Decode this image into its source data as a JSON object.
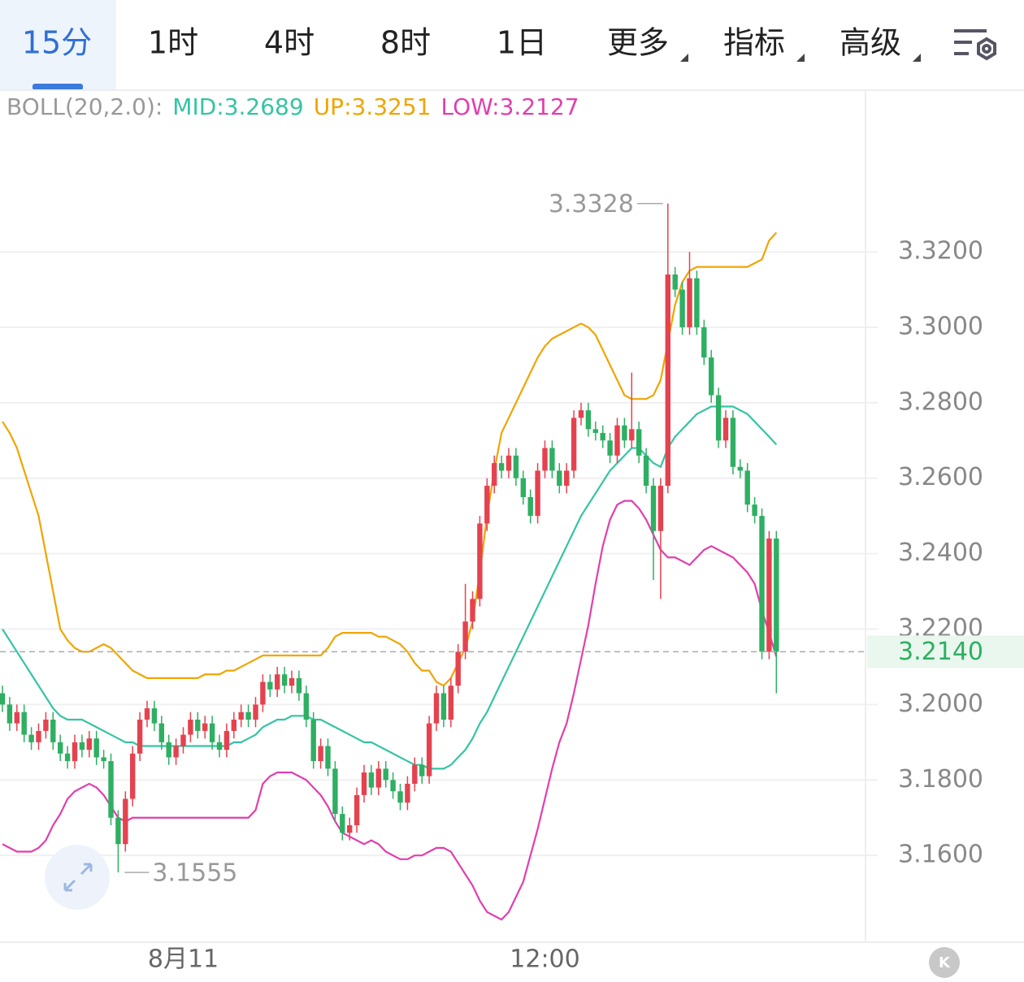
{
  "tabs": {
    "items": [
      "15分",
      "1时",
      "4时",
      "8时",
      "1日",
      "更多",
      "指标",
      "高级"
    ],
    "selected": 0
  },
  "controls": {
    "kline_button": "K"
  },
  "chart_data": {
    "type": "candlestick",
    "indicator_label": "BOLL(20,2.0):",
    "up_color": "#e5424f",
    "down_color": "#2eaf62",
    "categories": [
      null,
      null,
      null,
      null,
      null,
      null,
      null,
      null,
      null,
      null,
      null,
      null,
      null,
      null,
      null,
      null,
      null,
      null,
      null,
      null,
      null,
      null,
      null,
      null,
      null,
      "8月11",
      null,
      null,
      null,
      null,
      null,
      null,
      null,
      null,
      null,
      null,
      null,
      null,
      null,
      null,
      null,
      null,
      null,
      null,
      null,
      null,
      null,
      null,
      null,
      null,
      null,
      null,
      null,
      null,
      null,
      null,
      null,
      null,
      null,
      null,
      null,
      null,
      null,
      null,
      null,
      null,
      null,
      null,
      null,
      null,
      null,
      null,
      null,
      null,
      null,
      "12:00",
      null,
      null,
      null,
      null,
      null,
      null,
      null,
      null,
      null,
      null,
      null,
      null,
      null,
      null,
      null,
      null,
      null,
      null,
      null,
      null,
      null,
      null,
      null,
      null,
      null,
      null,
      null,
      null,
      null,
      null,
      null,
      null
    ],
    "open": [
      3.203,
      3.2,
      3.195,
      3.198,
      3.192,
      3.19,
      3.193,
      3.196,
      3.19,
      3.187,
      3.185,
      3.19,
      3.188,
      3.191,
      3.186,
      3.185,
      3.17,
      3.163,
      3.175,
      3.187,
      3.196,
      3.199,
      3.195,
      3.19,
      3.186,
      3.189,
      3.192,
      3.196,
      3.193,
      3.195,
      3.19,
      3.188,
      3.193,
      3.196,
      3.198,
      3.196,
      3.2,
      3.206,
      3.204,
      3.208,
      3.205,
      3.207,
      3.203,
      3.196,
      3.185,
      3.189,
      3.183,
      3.171,
      3.166,
      3.168,
      3.176,
      3.182,
      3.178,
      3.183,
      3.18,
      3.177,
      3.174,
      3.179,
      3.184,
      3.181,
      3.195,
      3.203,
      3.196,
      3.205,
      3.214,
      3.222,
      3.228,
      3.248,
      3.258,
      3.264,
      3.262,
      3.266,
      3.26,
      3.255,
      3.25,
      3.262,
      3.268,
      3.262,
      3.258,
      3.262,
      3.276,
      3.278,
      3.273,
      3.272,
      3.27,
      3.266,
      3.274,
      3.27,
      3.273,
      3.266,
      3.258,
      3.246,
      3.258,
      3.314,
      3.31,
      3.3,
      3.313,
      3.3,
      3.292,
      3.282,
      3.27,
      3.276,
      3.263,
      3.262,
      3.253,
      3.25,
      3.214,
      3.244
    ],
    "high": [
      3.205,
      3.202,
      3.2,
      3.2,
      3.194,
      3.195,
      3.198,
      3.198,
      3.192,
      3.189,
      3.192,
      3.192,
      3.193,
      3.193,
      3.188,
      3.187,
      3.172,
      3.177,
      3.189,
      3.198,
      3.201,
      3.201,
      3.197,
      3.192,
      3.191,
      3.194,
      3.198,
      3.198,
      3.197,
      3.197,
      3.192,
      3.195,
      3.198,
      3.2,
      3.2,
      3.202,
      3.208,
      3.208,
      3.21,
      3.21,
      3.209,
      3.209,
      3.205,
      3.198,
      3.191,
      3.191,
      3.185,
      3.173,
      3.17,
      3.178,
      3.184,
      3.184,
      3.185,
      3.185,
      3.182,
      3.179,
      3.181,
      3.186,
      3.186,
      3.197,
      3.205,
      3.205,
      3.207,
      3.216,
      3.232,
      3.23,
      3.25,
      3.26,
      3.266,
      3.266,
      3.268,
      3.268,
      3.262,
      3.257,
      3.264,
      3.27,
      3.27,
      3.264,
      3.264,
      3.278,
      3.28,
      3.28,
      3.275,
      3.274,
      3.272,
      3.276,
      3.276,
      3.288,
      3.275,
      3.268,
      3.26,
      3.26,
      3.3328,
      3.316,
      3.312,
      3.32,
      3.315,
      3.302,
      3.294,
      3.284,
      3.278,
      3.278,
      3.265,
      3.264,
      3.255,
      3.252,
      3.246,
      3.246
    ],
    "low": [
      3.198,
      3.193,
      3.193,
      3.19,
      3.188,
      3.188,
      3.191,
      3.188,
      3.185,
      3.183,
      3.183,
      3.186,
      3.186,
      3.184,
      3.183,
      3.168,
      3.1555,
      3.161,
      3.173,
      3.185,
      3.194,
      3.193,
      3.188,
      3.184,
      3.184,
      3.187,
      3.19,
      3.191,
      3.191,
      3.188,
      3.186,
      3.186,
      3.191,
      3.194,
      3.194,
      3.194,
      3.198,
      3.202,
      3.202,
      3.203,
      3.203,
      3.201,
      3.194,
      3.183,
      3.183,
      3.181,
      3.169,
      3.164,
      3.164,
      3.166,
      3.174,
      3.176,
      3.176,
      3.178,
      3.175,
      3.172,
      3.172,
      3.177,
      3.179,
      3.179,
      3.193,
      3.194,
      3.194,
      3.203,
      3.212,
      3.22,
      3.226,
      3.246,
      3.256,
      3.26,
      3.26,
      3.258,
      3.253,
      3.248,
      3.248,
      3.26,
      3.26,
      3.256,
      3.256,
      3.26,
      3.274,
      3.271,
      3.27,
      3.268,
      3.264,
      3.264,
      3.268,
      3.268,
      3.264,
      3.256,
      3.233,
      3.228,
      3.256,
      3.308,
      3.298,
      3.298,
      3.298,
      3.29,
      3.28,
      3.268,
      3.268,
      3.261,
      3.26,
      3.251,
      3.248,
      3.212,
      3.212,
      3.203
    ],
    "close": [
      3.2,
      3.195,
      3.198,
      3.192,
      3.19,
      3.193,
      3.196,
      3.19,
      3.187,
      3.185,
      3.19,
      3.188,
      3.191,
      3.186,
      3.185,
      3.17,
      3.163,
      3.175,
      3.187,
      3.196,
      3.199,
      3.195,
      3.19,
      3.186,
      3.189,
      3.192,
      3.196,
      3.193,
      3.195,
      3.19,
      3.188,
      3.193,
      3.196,
      3.198,
      3.196,
      3.2,
      3.206,
      3.204,
      3.208,
      3.205,
      3.207,
      3.203,
      3.196,
      3.185,
      3.189,
      3.183,
      3.171,
      3.166,
      3.168,
      3.176,
      3.182,
      3.178,
      3.183,
      3.18,
      3.177,
      3.174,
      3.179,
      3.184,
      3.181,
      3.195,
      3.203,
      3.196,
      3.205,
      3.214,
      3.222,
      3.228,
      3.248,
      3.258,
      3.264,
      3.262,
      3.266,
      3.26,
      3.255,
      3.25,
      3.262,
      3.268,
      3.262,
      3.258,
      3.262,
      3.276,
      3.278,
      3.273,
      3.272,
      3.27,
      3.266,
      3.274,
      3.27,
      3.273,
      3.266,
      3.258,
      3.246,
      3.258,
      3.314,
      3.31,
      3.3,
      3.313,
      3.3,
      3.292,
      3.282,
      3.27,
      3.276,
      3.263,
      3.262,
      3.253,
      3.25,
      3.214,
      3.244,
      3.214
    ],
    "overlays": [
      {
        "name": "MID",
        "legend_label": "MID:3.2689",
        "color": "#35c4a4",
        "values": [
          3.22,
          3.217,
          3.214,
          3.211,
          3.208,
          3.205,
          3.202,
          3.199,
          3.197,
          3.196,
          3.196,
          3.196,
          3.195,
          3.194,
          3.193,
          3.192,
          3.191,
          3.19,
          3.19,
          3.189,
          3.189,
          3.189,
          3.189,
          3.189,
          3.189,
          3.189,
          3.189,
          3.189,
          3.189,
          3.189,
          3.189,
          3.189,
          3.19,
          3.19,
          3.191,
          3.192,
          3.194,
          3.195,
          3.196,
          3.196,
          3.197,
          3.197,
          3.197,
          3.196,
          3.196,
          3.195,
          3.194,
          3.193,
          3.192,
          3.191,
          3.19,
          3.19,
          3.189,
          3.188,
          3.187,
          3.186,
          3.185,
          3.184,
          3.184,
          3.183,
          3.183,
          3.183,
          3.184,
          3.186,
          3.188,
          3.191,
          3.195,
          3.198,
          3.202,
          3.206,
          3.21,
          3.214,
          3.218,
          3.222,
          3.226,
          3.23,
          3.234,
          3.238,
          3.242,
          3.246,
          3.25,
          3.253,
          3.256,
          3.259,
          3.262,
          3.264,
          3.266,
          3.268,
          3.268,
          3.266,
          3.264,
          3.263,
          3.268,
          3.271,
          3.273,
          3.275,
          3.277,
          3.278,
          3.279,
          3.279,
          3.279,
          3.279,
          3.278,
          3.277,
          3.275,
          3.273,
          3.271,
          3.2689
        ]
      },
      {
        "name": "UP",
        "legend_label": "UP:3.3251",
        "color": "#f0a500",
        "values": [
          3.275,
          3.272,
          3.268,
          3.262,
          3.256,
          3.25,
          3.24,
          3.23,
          3.22,
          3.217,
          3.215,
          3.214,
          3.214,
          3.215,
          3.216,
          3.215,
          3.213,
          3.211,
          3.209,
          3.208,
          3.207,
          3.207,
          3.207,
          3.207,
          3.207,
          3.207,
          3.207,
          3.207,
          3.208,
          3.208,
          3.208,
          3.209,
          3.209,
          3.21,
          3.211,
          3.212,
          3.213,
          3.213,
          3.213,
          3.213,
          3.213,
          3.213,
          3.213,
          3.213,
          3.213,
          3.215,
          3.218,
          3.219,
          3.219,
          3.219,
          3.219,
          3.219,
          3.218,
          3.218,
          3.217,
          3.216,
          3.214,
          3.211,
          3.209,
          3.209,
          3.206,
          3.205,
          3.207,
          3.211,
          3.215,
          3.222,
          3.235,
          3.25,
          3.262,
          3.272,
          3.276,
          3.28,
          3.284,
          3.288,
          3.292,
          3.295,
          3.297,
          3.298,
          3.299,
          3.3,
          3.301,
          3.3,
          3.298,
          3.294,
          3.29,
          3.286,
          3.282,
          3.281,
          3.281,
          3.281,
          3.282,
          3.286,
          3.296,
          3.306,
          3.312,
          3.315,
          3.316,
          3.316,
          3.316,
          3.316,
          3.316,
          3.316,
          3.316,
          3.316,
          3.317,
          3.318,
          3.323,
          3.3251
        ]
      },
      {
        "name": "LOW",
        "legend_label": "LOW:3.2127",
        "color": "#e03fae",
        "values": [
          3.163,
          3.162,
          3.161,
          3.161,
          3.161,
          3.162,
          3.164,
          3.168,
          3.171,
          3.175,
          3.177,
          3.178,
          3.179,
          3.178,
          3.176,
          3.173,
          3.17,
          3.169,
          3.17,
          3.17,
          3.17,
          3.17,
          3.17,
          3.17,
          3.17,
          3.17,
          3.17,
          3.17,
          3.17,
          3.17,
          3.17,
          3.17,
          3.17,
          3.17,
          3.17,
          3.172,
          3.179,
          3.181,
          3.182,
          3.182,
          3.182,
          3.181,
          3.18,
          3.178,
          3.176,
          3.173,
          3.169,
          3.166,
          3.165,
          3.164,
          3.163,
          3.164,
          3.163,
          3.161,
          3.16,
          3.159,
          3.159,
          3.16,
          3.16,
          3.161,
          3.162,
          3.162,
          3.161,
          3.158,
          3.155,
          3.152,
          3.148,
          3.145,
          3.144,
          3.143,
          3.145,
          3.149,
          3.153,
          3.16,
          3.167,
          3.175,
          3.183,
          3.19,
          3.195,
          3.203,
          3.212,
          3.221,
          3.232,
          3.242,
          3.249,
          3.253,
          3.254,
          3.254,
          3.252,
          3.249,
          3.245,
          3.241,
          3.239,
          3.239,
          3.238,
          3.237,
          3.239,
          3.241,
          3.242,
          3.241,
          3.24,
          3.239,
          3.237,
          3.235,
          3.232,
          3.225,
          3.219,
          3.2127
        ]
      }
    ],
    "max_label": {
      "value": 3.3328,
      "label": "3.3328"
    },
    "min_label": {
      "value": 3.1555,
      "label": "3.1555"
    },
    "last_price": {
      "value": 3.214,
      "label": "3.2140"
    },
    "ylim": [
      3.137,
      3.362
    ],
    "yticks": [
      {
        "value": 3.16,
        "label": "3.1600"
      },
      {
        "value": 3.18,
        "label": "3.1800"
      },
      {
        "value": 3.2,
        "label": "3.2000"
      },
      {
        "value": 3.22,
        "label": "3.2200"
      },
      {
        "value": 3.24,
        "label": "3.2400"
      },
      {
        "value": 3.26,
        "label": "3.2600"
      },
      {
        "value": 3.28,
        "label": "3.2800"
      },
      {
        "value": 3.3,
        "label": "3.3000"
      },
      {
        "value": 3.32,
        "label": "3.3200"
      }
    ],
    "grid": true
  }
}
